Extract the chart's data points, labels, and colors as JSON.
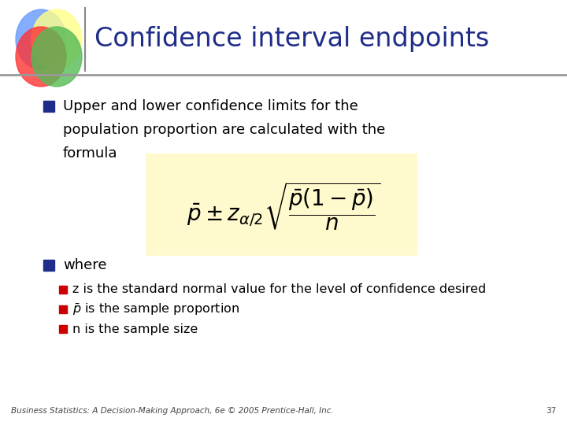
{
  "title": "Confidence interval endpoints",
  "title_color": "#1F2D8A",
  "title_fontsize": 24,
  "bg_color": "#FFFFFF",
  "bullet_color": "#1F2D8A",
  "sub_bullet_color": "#CC0000",
  "text_color": "#000000",
  "formula_bg": "#FFFACD",
  "bullet1_text": [
    "Upper and lower confidence limits for the",
    "population proportion are calculated with the",
    "formula"
  ],
  "bullet2_text": "where",
  "sub_bullets": [
    "z is the standard normal value for the level of confidence desired",
    " is the sample proportion",
    "n is the sample size"
  ],
  "footer_text": "Business Statistics: A Decision-Making Approach, 6e © 2005 Prentice-Hall, Inc.",
  "footer_page": "37"
}
